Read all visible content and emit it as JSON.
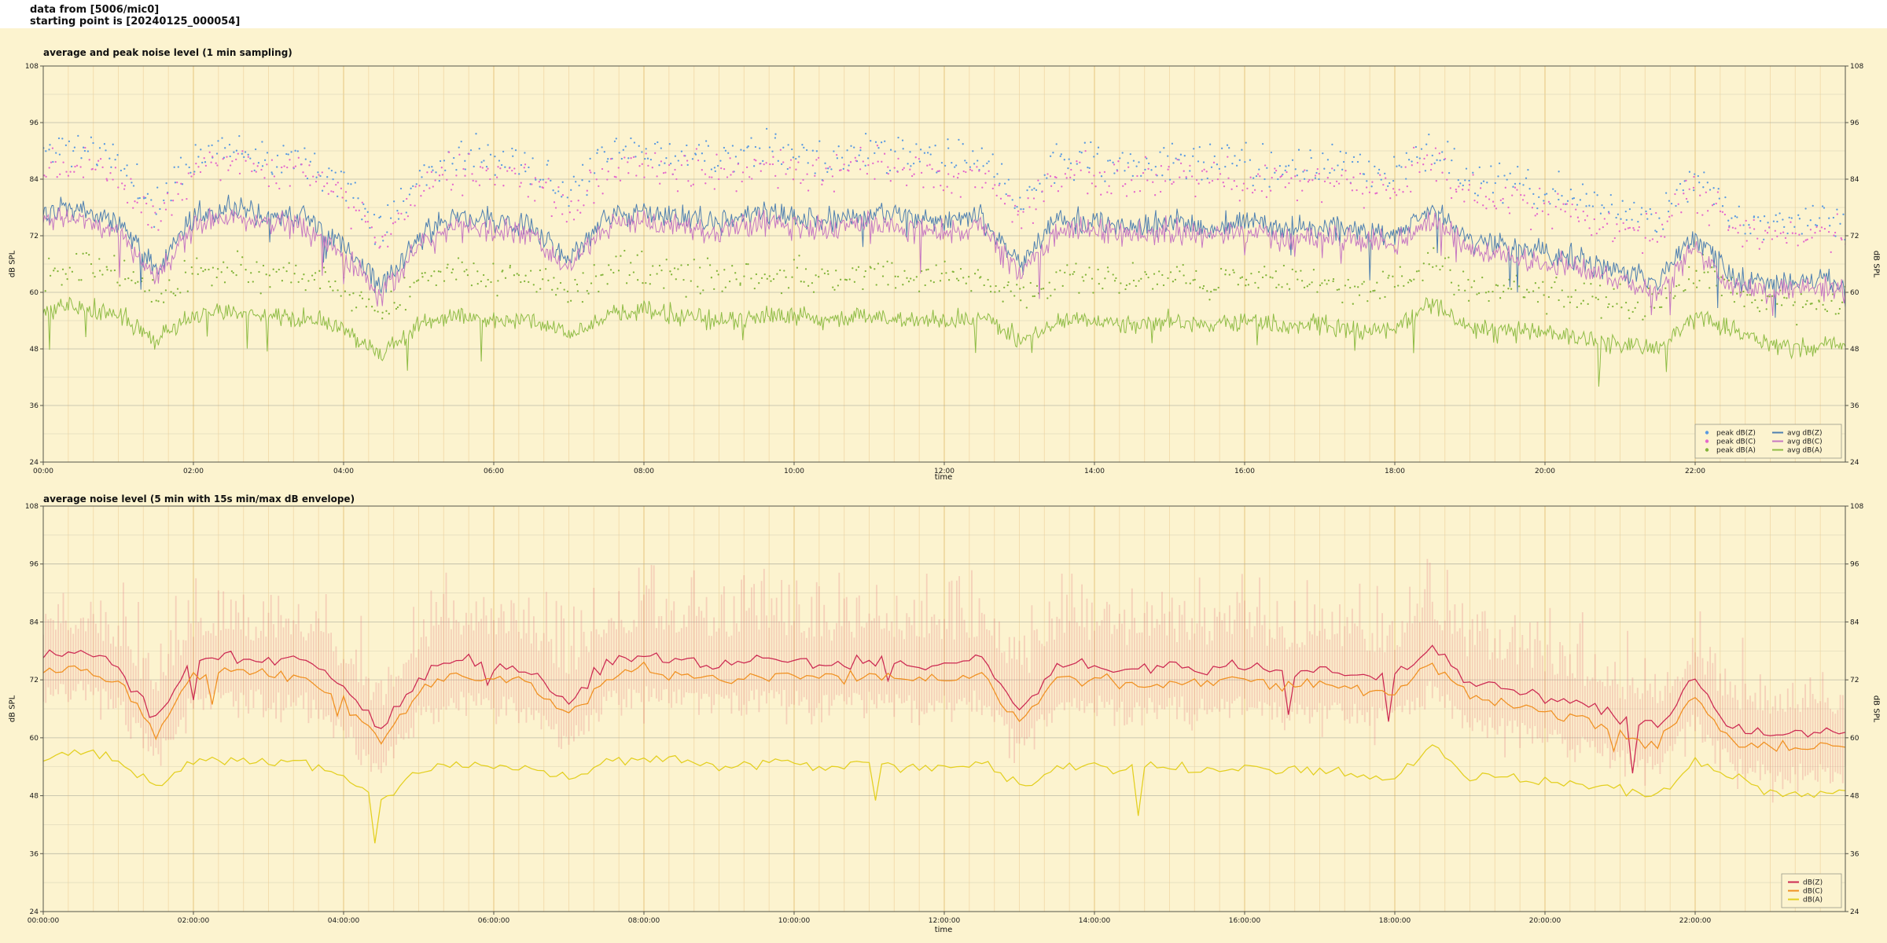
{
  "header": {
    "line1": "data from [5006/mic0]",
    "line2": "starting point is [20240125_000054]"
  },
  "colors": {
    "background": "#fcf3cf",
    "grid_v_minor": "#f3ddae",
    "grid_v_major": "#e6c47e",
    "grid_h_major": "#a8a89a",
    "grid_h_minor": "#d6d0b4",
    "frame": "#55554a",
    "peak_dbz": "#5a9ae0",
    "peak_dbc": "#e468cc",
    "peak_dba": "#83b43a",
    "avg_dbz": "#4e7fb0",
    "avg_dbc": "#c678c2",
    "avg_dba": "#8fbc45",
    "env": "rgba(226,118,126,0.28)",
    "dbz": "#cc2952",
    "dbc": "#f09020",
    "dba": "#e3cf1f"
  },
  "chart_data": [
    {
      "type": "line+scatter",
      "title": "average and peak noise level (1 min sampling)",
      "xlabel": "time",
      "ylabel_left": "dB SPL",
      "ylabel_right": "dB SPL",
      "ylim": [
        24,
        108
      ],
      "yticks": [
        24,
        36,
        48,
        60,
        72,
        84,
        96,
        108
      ],
      "xlim_hours": [
        0,
        24
      ],
      "xtick_minutes": [
        0,
        120,
        240,
        360,
        480,
        600,
        720,
        840,
        960,
        1080,
        1200,
        1320
      ],
      "xtick_labels": [
        "00:00",
        "02:00",
        "04:00",
        "06:00",
        "08:00",
        "10:00",
        "12:00",
        "14:00",
        "16:00",
        "18:00",
        "20:00",
        "22:00"
      ],
      "control_step_minutes": 30,
      "series": [
        {
          "name": "peak dB(Z)",
          "key": "peak_dbz",
          "style": "scatter",
          "base": "avg_dbz",
          "offset_mean": 13,
          "offset_spread": 4,
          "step_min": 2,
          "seed": 11
        },
        {
          "name": "peak dB(C)",
          "key": "peak_dbc",
          "style": "scatter",
          "base": "avg_dbc",
          "offset_mean": 12,
          "offset_spread": 4,
          "step_min": 2,
          "seed": 12
        },
        {
          "name": "peak dB(A)",
          "key": "peak_dba",
          "style": "scatter",
          "base": "avg_dba",
          "offset_mean": 9,
          "offset_spread": 3.5,
          "step_min": 2,
          "seed": 13
        },
        {
          "name": "avg dB(Z)",
          "key": "avg_dbz",
          "style": "line",
          "noise": 2.6,
          "step_min": 1,
          "seed": 1,
          "values": [
            77,
            78,
            75,
            65,
            76,
            78,
            76,
            76,
            70,
            61,
            72,
            76,
            75,
            74,
            67,
            76,
            77,
            76,
            75,
            77,
            76,
            75,
            77,
            76,
            75,
            76,
            66,
            75,
            75,
            74,
            75,
            74,
            75,
            73,
            74,
            73,
            72,
            78,
            71,
            70,
            68,
            67,
            64,
            62,
            72,
            63,
            62,
            63,
            62
          ]
        },
        {
          "name": "avg dB(C)",
          "key": "avg_dbc",
          "style": "line",
          "noise": 2.5,
          "step_min": 1,
          "seed": 2,
          "values": [
            75,
            76,
            73,
            63,
            74,
            76,
            74,
            74,
            68,
            59,
            70,
            74,
            73,
            72,
            65,
            74,
            75,
            74,
            73,
            75,
            74,
            73,
            75,
            74,
            73,
            74,
            64,
            73,
            73,
            72,
            73,
            72,
            73,
            71,
            72,
            71,
            70,
            76,
            69,
            68,
            66,
            65,
            62,
            60,
            70,
            61,
            60,
            61,
            60
          ]
        },
        {
          "name": "avg dB(A)",
          "key": "avg_dba",
          "style": "line",
          "noise": 2.0,
          "step_min": 1,
          "seed": 3,
          "values": [
            56,
            57,
            55,
            50,
            55,
            56,
            55,
            55,
            52,
            47,
            53,
            55,
            54,
            54,
            51,
            55,
            56,
            55,
            54,
            55,
            55,
            54,
            55,
            54,
            54,
            55,
            50,
            54,
            54,
            53,
            54,
            53,
            54,
            53,
            53,
            52,
            52,
            58,
            52,
            52,
            51,
            50,
            49,
            48,
            55,
            52,
            49,
            48,
            49
          ]
        }
      ],
      "legend": [
        {
          "label": "peak dB(Z)",
          "marker": "dot",
          "color": "peak_dbz",
          "col": 0
        },
        {
          "label": "peak dB(C)",
          "marker": "dot",
          "color": "peak_dbc",
          "col": 0
        },
        {
          "label": "peak dB(A)",
          "marker": "dot",
          "color": "peak_dba",
          "col": 0
        },
        {
          "label": "avg dB(Z)",
          "marker": "line",
          "color": "avg_dbz",
          "col": 1
        },
        {
          "label": "avg dB(C)",
          "marker": "line",
          "color": "avg_dbc",
          "col": 1
        },
        {
          "label": "avg dB(A)",
          "marker": "line",
          "color": "avg_dba",
          "col": 1
        }
      ]
    },
    {
      "type": "line",
      "title": "average noise level (5 min with 15s min/max dB envelope)",
      "xlabel": "time",
      "ylabel_left": "dB SPL",
      "ylabel_right": "dB SPL",
      "ylim": [
        24,
        108
      ],
      "yticks": [
        24,
        36,
        48,
        60,
        72,
        84,
        96,
        108
      ],
      "xlim_hours": [
        0,
        24
      ],
      "xtick_minutes": [
        0,
        120,
        240,
        360,
        480,
        600,
        720,
        840,
        960,
        1080,
        1200,
        1320
      ],
      "xtick_labels": [
        "00:00:00",
        "02:00:00",
        "04:00:00",
        "06:00:00",
        "08:00:00",
        "10:00:00",
        "12:00:00",
        "14:00:00",
        "16:00:00",
        "18:00:00",
        "20:00:00",
        "22:00:00"
      ],
      "control_step_minutes": 30,
      "envelope": {
        "base_top": "dbz",
        "base_bot": "dbc",
        "up_base": 4,
        "up_spread": 9,
        "down_base": 3,
        "down_spread": 6,
        "step_min": 2,
        "seed": 24,
        "color": "env"
      },
      "series": [
        {
          "name": "dB(Z)",
          "key": "dbz",
          "style": "line",
          "noise": 1.4,
          "step_min": 5,
          "seed": 21,
          "values": [
            77,
            78,
            75,
            64,
            76,
            77,
            76,
            76,
            70,
            62,
            73,
            76,
            75,
            74,
            67,
            76,
            77,
            76,
            75,
            76,
            76,
            75,
            76,
            75,
            75,
            76,
            66,
            75,
            75,
            74,
            75,
            74,
            75,
            73,
            74,
            73,
            72,
            79,
            71,
            70,
            68,
            67,
            64,
            62,
            72,
            62,
            61,
            61,
            61
          ]
        },
        {
          "name": "dB(C)",
          "key": "dbc",
          "style": "line",
          "noise": 1.3,
          "step_min": 5,
          "seed": 22,
          "values": [
            74,
            75,
            72,
            61,
            73,
            74,
            73,
            73,
            67,
            59,
            70,
            73,
            72,
            71,
            64,
            73,
            74,
            73,
            72,
            73,
            73,
            72,
            73,
            72,
            72,
            73,
            63,
            72,
            72,
            71,
            72,
            71,
            72,
            70,
            71,
            70,
            69,
            76,
            68,
            67,
            65,
            64,
            61,
            59,
            69,
            59,
            58,
            58,
            58
          ]
        },
        {
          "name": "dB(A)",
          "key": "dba",
          "style": "line",
          "noise": 1.2,
          "step_min": 5,
          "seed": 23,
          "values": [
            56,
            57,
            55,
            50,
            55,
            56,
            55,
            55,
            52,
            47,
            53,
            55,
            54,
            54,
            51,
            55,
            56,
            55,
            54,
            55,
            55,
            54,
            55,
            54,
            54,
            55,
            50,
            54,
            54,
            53,
            54,
            53,
            54,
            53,
            53,
            52,
            52,
            58,
            52,
            52,
            51,
            50,
            49,
            48,
            55,
            52,
            49,
            48,
            49
          ]
        }
      ],
      "legend": [
        {
          "label": "dB(Z)",
          "marker": "line",
          "color": "dbz",
          "col": 0
        },
        {
          "label": "dB(C)",
          "marker": "line",
          "color": "dbc",
          "col": 0
        },
        {
          "label": "dB(A)",
          "marker": "line",
          "color": "dba",
          "col": 0
        }
      ]
    }
  ]
}
